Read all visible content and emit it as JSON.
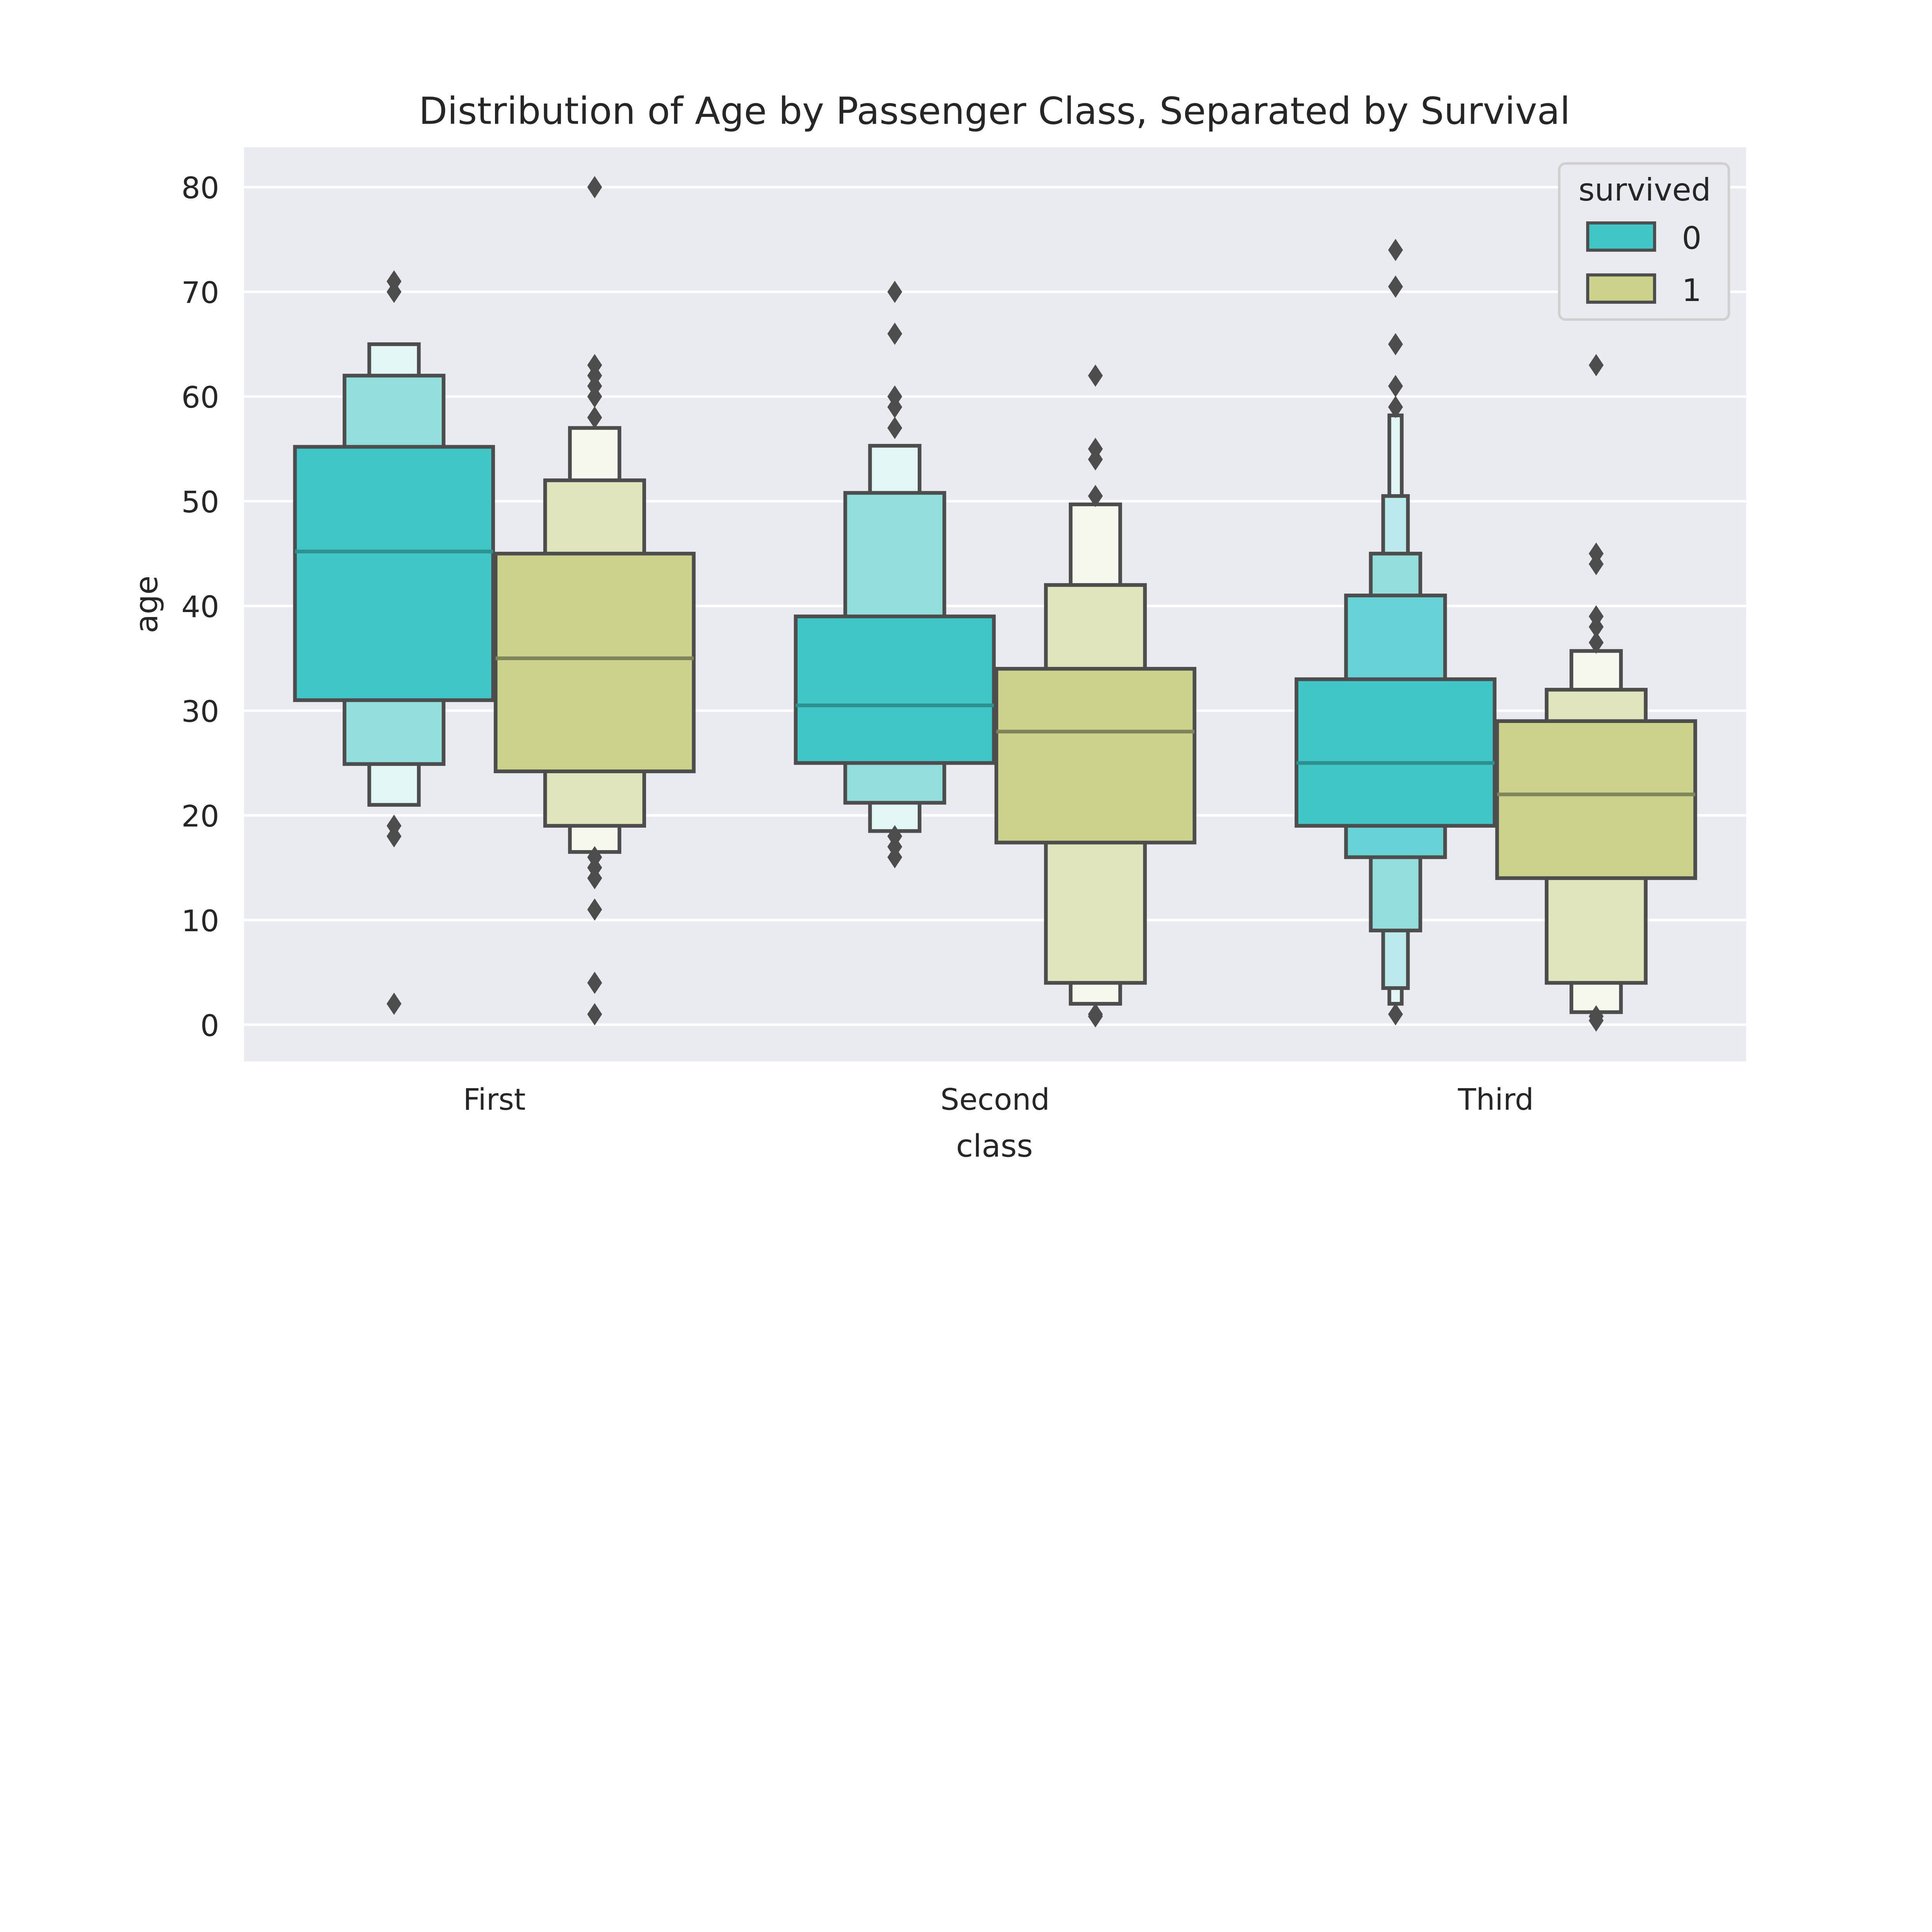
{
  "chart_data": {
    "type": "boxen",
    "title": "Distribution of Age by Passenger Class, Separated by Survival",
    "xlabel": "class",
    "ylabel": "age",
    "categories": [
      "First",
      "Second",
      "Third"
    ],
    "ylim": [
      -3.5,
      83.8
    ],
    "yticks": [
      0,
      10,
      20,
      30,
      40,
      50,
      60,
      70,
      80
    ],
    "grid": true,
    "legend": {
      "title": "survived",
      "placement": "top-right"
    },
    "colors": {
      "0": "#41c6c8",
      "1": "#ccd28b",
      "edge": "#4d4d4d",
      "background": "#eaeaf2",
      "grid": "#ffffff"
    },
    "series": [
      {
        "name": "0",
        "groups": [
          {
            "category": "First",
            "median": 45.2,
            "levels": [
              [
                31,
                55.2
              ],
              [
                24.9,
                62
              ],
              [
                21,
                65
              ]
            ],
            "outliers": [
              71,
              70,
              19,
              18,
              2
            ]
          },
          {
            "category": "Second",
            "median": 30.5,
            "levels": [
              [
                25,
                39
              ],
              [
                21.2,
                50.8
              ],
              [
                18.5,
                55.3
              ]
            ],
            "outliers": [
              70,
              66,
              60,
              59,
              57,
              18,
              17,
              16
            ]
          },
          {
            "category": "Third",
            "median": 25,
            "levels": [
              [
                19,
                33
              ],
              [
                16,
                41
              ],
              [
                9,
                45
              ],
              [
                3.5,
                50.5
              ],
              [
                2,
                58.2
              ]
            ],
            "outliers": [
              74,
              70.5,
              65,
              61,
              59,
              1
            ]
          }
        ]
      },
      {
        "name": "1",
        "groups": [
          {
            "category": "First",
            "median": 35,
            "levels": [
              [
                24.2,
                45
              ],
              [
                19,
                52
              ],
              [
                16.5,
                57
              ]
            ],
            "outliers": [
              80,
              63,
              62,
              61,
              60,
              58,
              16,
              15,
              14,
              11,
              4,
              1
            ]
          },
          {
            "category": "Second",
            "median": 28,
            "levels": [
              [
                17.4,
                34
              ],
              [
                4,
                42
              ],
              [
                2,
                49.7
              ]
            ],
            "outliers": [
              62,
              55,
              54,
              50.5,
              1,
              0.8
            ]
          },
          {
            "category": "Third",
            "median": 22,
            "levels": [
              [
                14,
                29
              ],
              [
                4,
                32
              ],
              [
                1.2,
                35.7
              ]
            ],
            "outliers": [
              63,
              45,
              44,
              39,
              38,
              36.5,
              0.8,
              0.4
            ]
          }
        ]
      }
    ]
  }
}
